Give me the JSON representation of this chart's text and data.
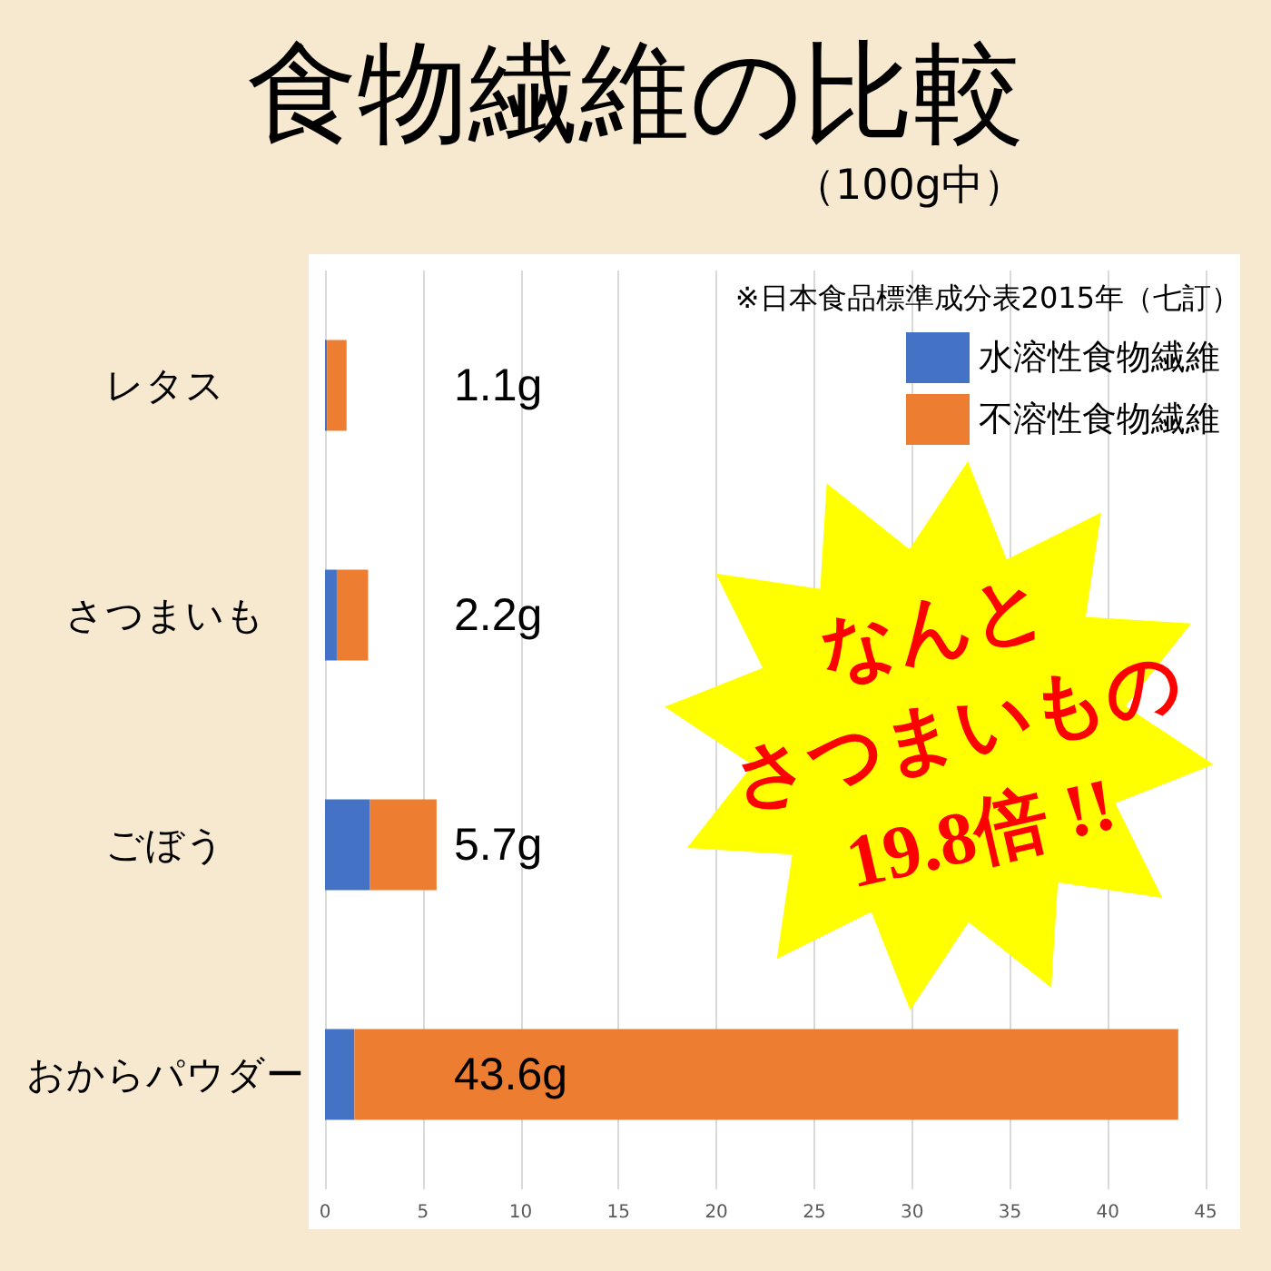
{
  "chart_data": {
    "type": "bar",
    "orientation": "horizontal",
    "stacked": true,
    "title": "食物繊維の比較",
    "subtitle": "（100g中）",
    "categories": [
      "レタス",
      "さつまいも",
      "ごぼう",
      "おからパウダー"
    ],
    "series": [
      {
        "name": "水溶性食物繊維",
        "color": "#4472c4",
        "values": [
          0.1,
          0.6,
          2.3,
          1.5
        ]
      },
      {
        "name": "不溶性食物繊維",
        "color": "#ed7d31",
        "values": [
          1.0,
          1.6,
          3.4,
          42.1
        ]
      }
    ],
    "totals": [
      "1.1g",
      "2.2g",
      "5.7g",
      "43.6g"
    ],
    "xlim": [
      0,
      45
    ],
    "xticks": [
      0,
      5,
      10,
      15,
      20,
      25,
      30,
      35,
      40,
      45
    ],
    "grid": "x",
    "legend": "top right",
    "annotations": [
      "※日本食品標準成分表2015年（七訂）",
      "なんと",
      "さつまいもの",
      "19.8倍 !!"
    ]
  }
}
